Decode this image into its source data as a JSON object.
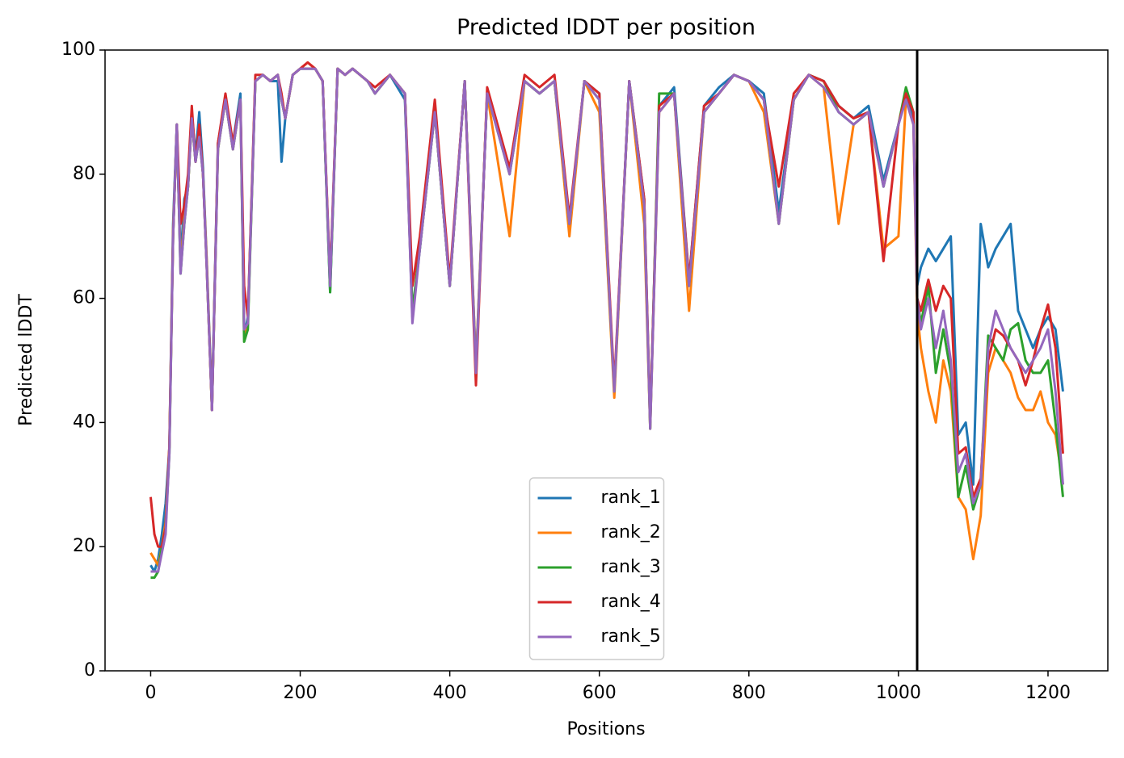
{
  "chart_data": {
    "type": "line",
    "title": "Predicted lDDT per position",
    "xlabel": "Positions",
    "ylabel": "Predicted lDDT",
    "xlim": [
      -61,
      1280
    ],
    "ylim": [
      0,
      100
    ],
    "xticks": [
      0,
      200,
      400,
      600,
      800,
      1000,
      1200
    ],
    "yticks": [
      0,
      20,
      40,
      60,
      80,
      100
    ],
    "vline": 1025,
    "vline_color": "#000000",
    "legend": "lower center",
    "x": [
      0,
      5,
      10,
      15,
      20,
      25,
      30,
      35,
      40,
      45,
      50,
      55,
      60,
      65,
      70,
      75,
      82,
      90,
      100,
      110,
      120,
      125,
      130,
      140,
      150,
      160,
      170,
      175,
      180,
      190,
      200,
      210,
      220,
      230,
      240,
      250,
      260,
      270,
      280,
      290,
      300,
      320,
      340,
      350,
      360,
      380,
      400,
      420,
      435,
      450,
      480,
      500,
      520,
      540,
      560,
      580,
      600,
      620,
      640,
      660,
      668,
      680,
      700,
      720,
      740,
      760,
      780,
      800,
      820,
      840,
      860,
      880,
      900,
      920,
      940,
      960,
      980,
      1000,
      1010,
      1020,
      1025,
      1030,
      1040,
      1050,
      1060,
      1070,
      1080,
      1090,
      1100,
      1110,
      1120,
      1130,
      1140,
      1150,
      1160,
      1170,
      1180,
      1190,
      1200,
      1210,
      1220
    ],
    "series": [
      {
        "name": "rank_1",
        "color": "#1f77b4",
        "values": [
          17,
          16,
          18,
          22,
          27,
          36,
          72,
          88,
          66,
          76,
          78,
          90,
          83,
          90,
          81,
          66,
          43,
          85,
          92,
          85,
          93,
          54,
          57,
          95,
          96,
          95,
          95,
          82,
          89,
          96,
          97,
          97,
          97,
          95,
          61,
          97,
          96,
          97,
          96,
          95,
          93,
          96,
          92,
          57,
          68,
          90,
          62,
          95,
          49,
          93,
          81,
          95,
          93,
          95,
          72,
          95,
          93,
          45,
          95,
          76,
          40,
          91,
          94,
          63,
          91,
          94,
          96,
          95,
          93,
          74,
          92,
          96,
          95,
          91,
          89,
          91,
          79,
          88,
          93,
          89,
          62,
          65,
          68,
          66,
          68,
          70,
          38,
          40,
          30,
          72,
          65,
          68,
          70,
          72,
          58,
          55,
          52,
          55,
          57,
          55,
          45
        ]
      },
      {
        "name": "rank_2",
        "color": "#ff7f0e",
        "values": [
          19,
          18,
          17,
          20,
          24,
          36,
          71,
          87,
          65,
          73,
          78,
          89,
          82,
          87,
          80,
          66,
          42,
          84,
          92,
          84,
          92,
          54,
          56,
          95,
          96,
          95,
          96,
          92,
          89,
          96,
          97,
          98,
          97,
          95,
          62,
          97,
          96,
          97,
          96,
          95,
          93,
          96,
          93,
          57,
          69,
          90,
          62,
          95,
          49,
          93,
          70,
          95,
          93,
          95,
          70,
          95,
          90,
          44,
          95,
          72,
          39,
          90,
          93,
          58,
          90,
          93,
          96,
          95,
          90,
          72,
          92,
          96,
          94,
          72,
          88,
          90,
          68,
          70,
          92,
          88,
          58,
          52,
          45,
          40,
          50,
          45,
          28,
          26,
          18,
          25,
          48,
          52,
          50,
          48,
          44,
          42,
          42,
          45,
          40,
          38,
          30
        ]
      },
      {
        "name": "rank_3",
        "color": "#2ca02c",
        "values": [
          15,
          15,
          16,
          20,
          23,
          35,
          70,
          88,
          64,
          72,
          78,
          89,
          82,
          86,
          80,
          65,
          42,
          84,
          92,
          84,
          92,
          53,
          55,
          95,
          96,
          95,
          96,
          92,
          89,
          96,
          97,
          97,
          97,
          95,
          61,
          97,
          96,
          97,
          96,
          95,
          93,
          96,
          93,
          58,
          68,
          90,
          62,
          95,
          48,
          93,
          80,
          95,
          93,
          95,
          72,
          95,
          92,
          45,
          95,
          75,
          39,
          93,
          93,
          62,
          90,
          93,
          96,
          95,
          92,
          72,
          92,
          96,
          95,
          90,
          88,
          90,
          78,
          88,
          94,
          90,
          60,
          56,
          62,
          48,
          55,
          48,
          28,
          33,
          26,
          30,
          54,
          52,
          50,
          55,
          56,
          50,
          48,
          48,
          50,
          40,
          28
        ]
      },
      {
        "name": "rank_4",
        "color": "#d62728",
        "values": [
          28,
          22,
          20,
          20,
          23,
          36,
          70,
          88,
          72,
          75,
          80,
          91,
          82,
          88,
          80,
          65,
          42,
          85,
          93,
          85,
          92,
          62,
          57,
          96,
          96,
          95,
          96,
          93,
          89,
          96,
          97,
          98,
          97,
          95,
          63,
          97,
          96,
          97,
          96,
          95,
          94,
          96,
          93,
          62,
          70,
          92,
          63,
          95,
          46,
          94,
          81,
          96,
          94,
          96,
          73,
          95,
          93,
          46,
          95,
          76,
          40,
          91,
          93,
          63,
          91,
          93,
          96,
          95,
          92,
          78,
          93,
          96,
          95,
          91,
          89,
          90,
          66,
          88,
          93,
          90,
          60,
          58,
          63,
          58,
          62,
          60,
          35,
          36,
          28,
          31,
          50,
          55,
          54,
          52,
          50,
          46,
          50,
          55,
          59,
          52,
          35
        ]
      },
      {
        "name": "rank_5",
        "color": "#9467bd",
        "values": [
          16,
          16,
          16,
          19,
          22,
          35,
          70,
          88,
          64,
          72,
          78,
          89,
          82,
          86,
          80,
          65,
          42,
          84,
          92,
          84,
          92,
          55,
          56,
          95,
          96,
          95,
          96,
          92,
          89,
          96,
          97,
          97,
          97,
          95,
          62,
          97,
          96,
          97,
          96,
          95,
          93,
          96,
          93,
          56,
          68,
          90,
          62,
          95,
          48,
          93,
          80,
          95,
          93,
          95,
          72,
          95,
          92,
          45,
          95,
          75,
          39,
          90,
          93,
          62,
          90,
          93,
          96,
          95,
          92,
          72,
          92,
          96,
          94,
          90,
          88,
          90,
          78,
          88,
          92,
          88,
          60,
          55,
          60,
          52,
          58,
          50,
          32,
          35,
          27,
          30,
          52,
          58,
          55,
          52,
          50,
          48,
          50,
          52,
          55,
          45,
          30
        ]
      }
    ]
  }
}
